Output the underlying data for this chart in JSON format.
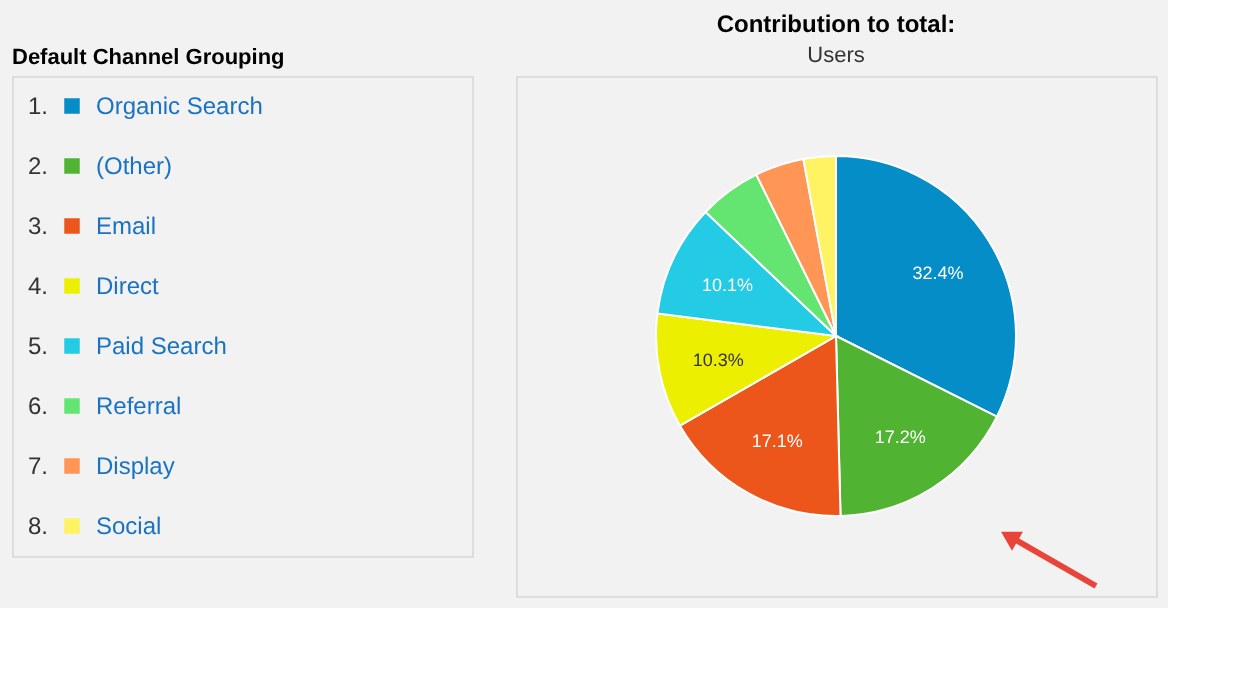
{
  "chart_data": {
    "type": "pie",
    "title": "Contribution to total:",
    "subtitle": "Users",
    "legend_title": "Default Channel Grouping",
    "legend": "left",
    "annotations": [
      "1.",
      "2.",
      "3.",
      "4.",
      "5.",
      "6.",
      "7.",
      "8."
    ],
    "categories": [
      "Organic Search",
      "(Other)",
      "Email",
      "Direct",
      "Paid Search",
      "Referral",
      "Display",
      "Social"
    ],
    "values": [
      32.4,
      17.2,
      17.1,
      10.3,
      10.1,
      5.6,
      4.4,
      2.9
    ],
    "colors": [
      "#058dc7",
      "#50b432",
      "#ed561b",
      "#edef00",
      "#24cbe5",
      "#64e572",
      "#ff9655",
      "#fff263"
    ],
    "value_labels": [
      "32.4%",
      "17.2%",
      "17.1%",
      "10.3%",
      "10.1%",
      null,
      null,
      null
    ]
  }
}
